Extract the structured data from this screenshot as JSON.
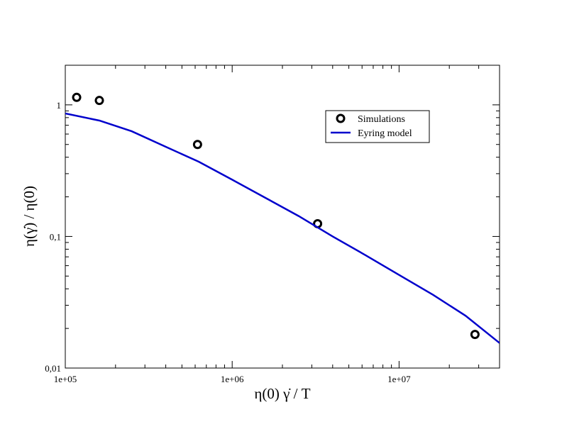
{
  "chart_data": {
    "type": "scatter",
    "x_scale": "log",
    "y_scale": "log",
    "xlim": [
      100000,
      40000000
    ],
    "ylim": [
      0.01,
      2
    ],
    "grid": false,
    "legend_position": "top-right",
    "xlabel": "η(0) γ̇ / T",
    "ylabel": "η(γ̇) / η(0)",
    "x_ticks": [
      {
        "value": 100000,
        "label": "1e+05"
      },
      {
        "value": 1000000,
        "label": "1e+06"
      },
      {
        "value": 10000000,
        "label": "1e+07"
      }
    ],
    "y_ticks": [
      {
        "value": 0.01,
        "label": "0,01"
      },
      {
        "value": 0.1,
        "label": "0,1"
      },
      {
        "value": 1,
        "label": "1"
      }
    ],
    "series": [
      {
        "name": "Simulations",
        "kind": "scatter",
        "marker": "open-circle",
        "color": "#000000",
        "points": [
          {
            "x": 117000,
            "y": 1.14
          },
          {
            "x": 160000,
            "y": 1.08
          },
          {
            "x": 620000,
            "y": 0.5
          },
          {
            "x": 3250000,
            "y": 0.125
          },
          {
            "x": 28500000,
            "y": 0.018
          }
        ]
      },
      {
        "name": "Eyring model",
        "kind": "line",
        "color": "#0000cc",
        "points": [
          {
            "x": 100000,
            "y": 0.86
          },
          {
            "x": 160000,
            "y": 0.76
          },
          {
            "x": 250000,
            "y": 0.63
          },
          {
            "x": 400000,
            "y": 0.48
          },
          {
            "x": 630000,
            "y": 0.37
          },
          {
            "x": 1000000,
            "y": 0.27
          },
          {
            "x": 1600000,
            "y": 0.195
          },
          {
            "x": 2500000,
            "y": 0.143
          },
          {
            "x": 4000000,
            "y": 0.1
          },
          {
            "x": 6300000,
            "y": 0.072
          },
          {
            "x": 10000000,
            "y": 0.051
          },
          {
            "x": 16000000,
            "y": 0.036
          },
          {
            "x": 25000000,
            "y": 0.025
          },
          {
            "x": 40000000,
            "y": 0.0155
          }
        ]
      }
    ]
  }
}
